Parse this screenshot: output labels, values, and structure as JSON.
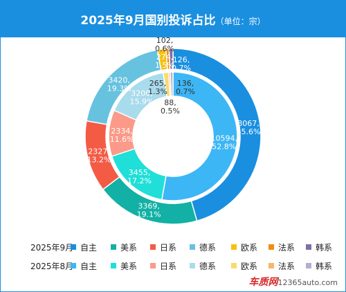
{
  "header": {
    "title": "2025年9月国别投诉占比",
    "unit": "（单位：宗）",
    "background": "#1a8fe0"
  },
  "chart_data": {
    "type": "pie",
    "categories": [
      "自主",
      "美系",
      "日系",
      "德系",
      "欧系",
      "法系",
      "韩系"
    ],
    "series": [
      {
        "name": "2025年9月",
        "ring": "outer",
        "values": [
          8067,
          3369,
          2327,
          3420,
          274,
          102,
          126
        ],
        "percent_labels": [
          "45.6%",
          "19.1%",
          "13.2%",
          "19.3%",
          "1.5%",
          "0.6%",
          "0.7%"
        ],
        "colors": [
          "#1a8fe0",
          "#12b0a5",
          "#f45b45",
          "#66c2df",
          "#f5c211",
          "#f28c12",
          "#7f6fa6"
        ]
      },
      {
        "name": "2025年8月",
        "ring": "inner",
        "values": [
          10594,
          3455,
          2334,
          3200,
          265,
          88,
          136
        ],
        "percent_labels": [
          "52.8%",
          "17.2%",
          "11.6%",
          "15.9%",
          "1.3%",
          "0.5%",
          "0.7%"
        ],
        "colors": [
          "#3cb6f5",
          "#1fdfd8",
          "#fb9a89",
          "#a8dbec",
          "#f8db70",
          "#f7b669",
          "#b5aed2"
        ]
      }
    ],
    "legend_position": "bottom"
  },
  "watermark": {
    "logo": "车质网",
    "site": "12365auto.com"
  }
}
